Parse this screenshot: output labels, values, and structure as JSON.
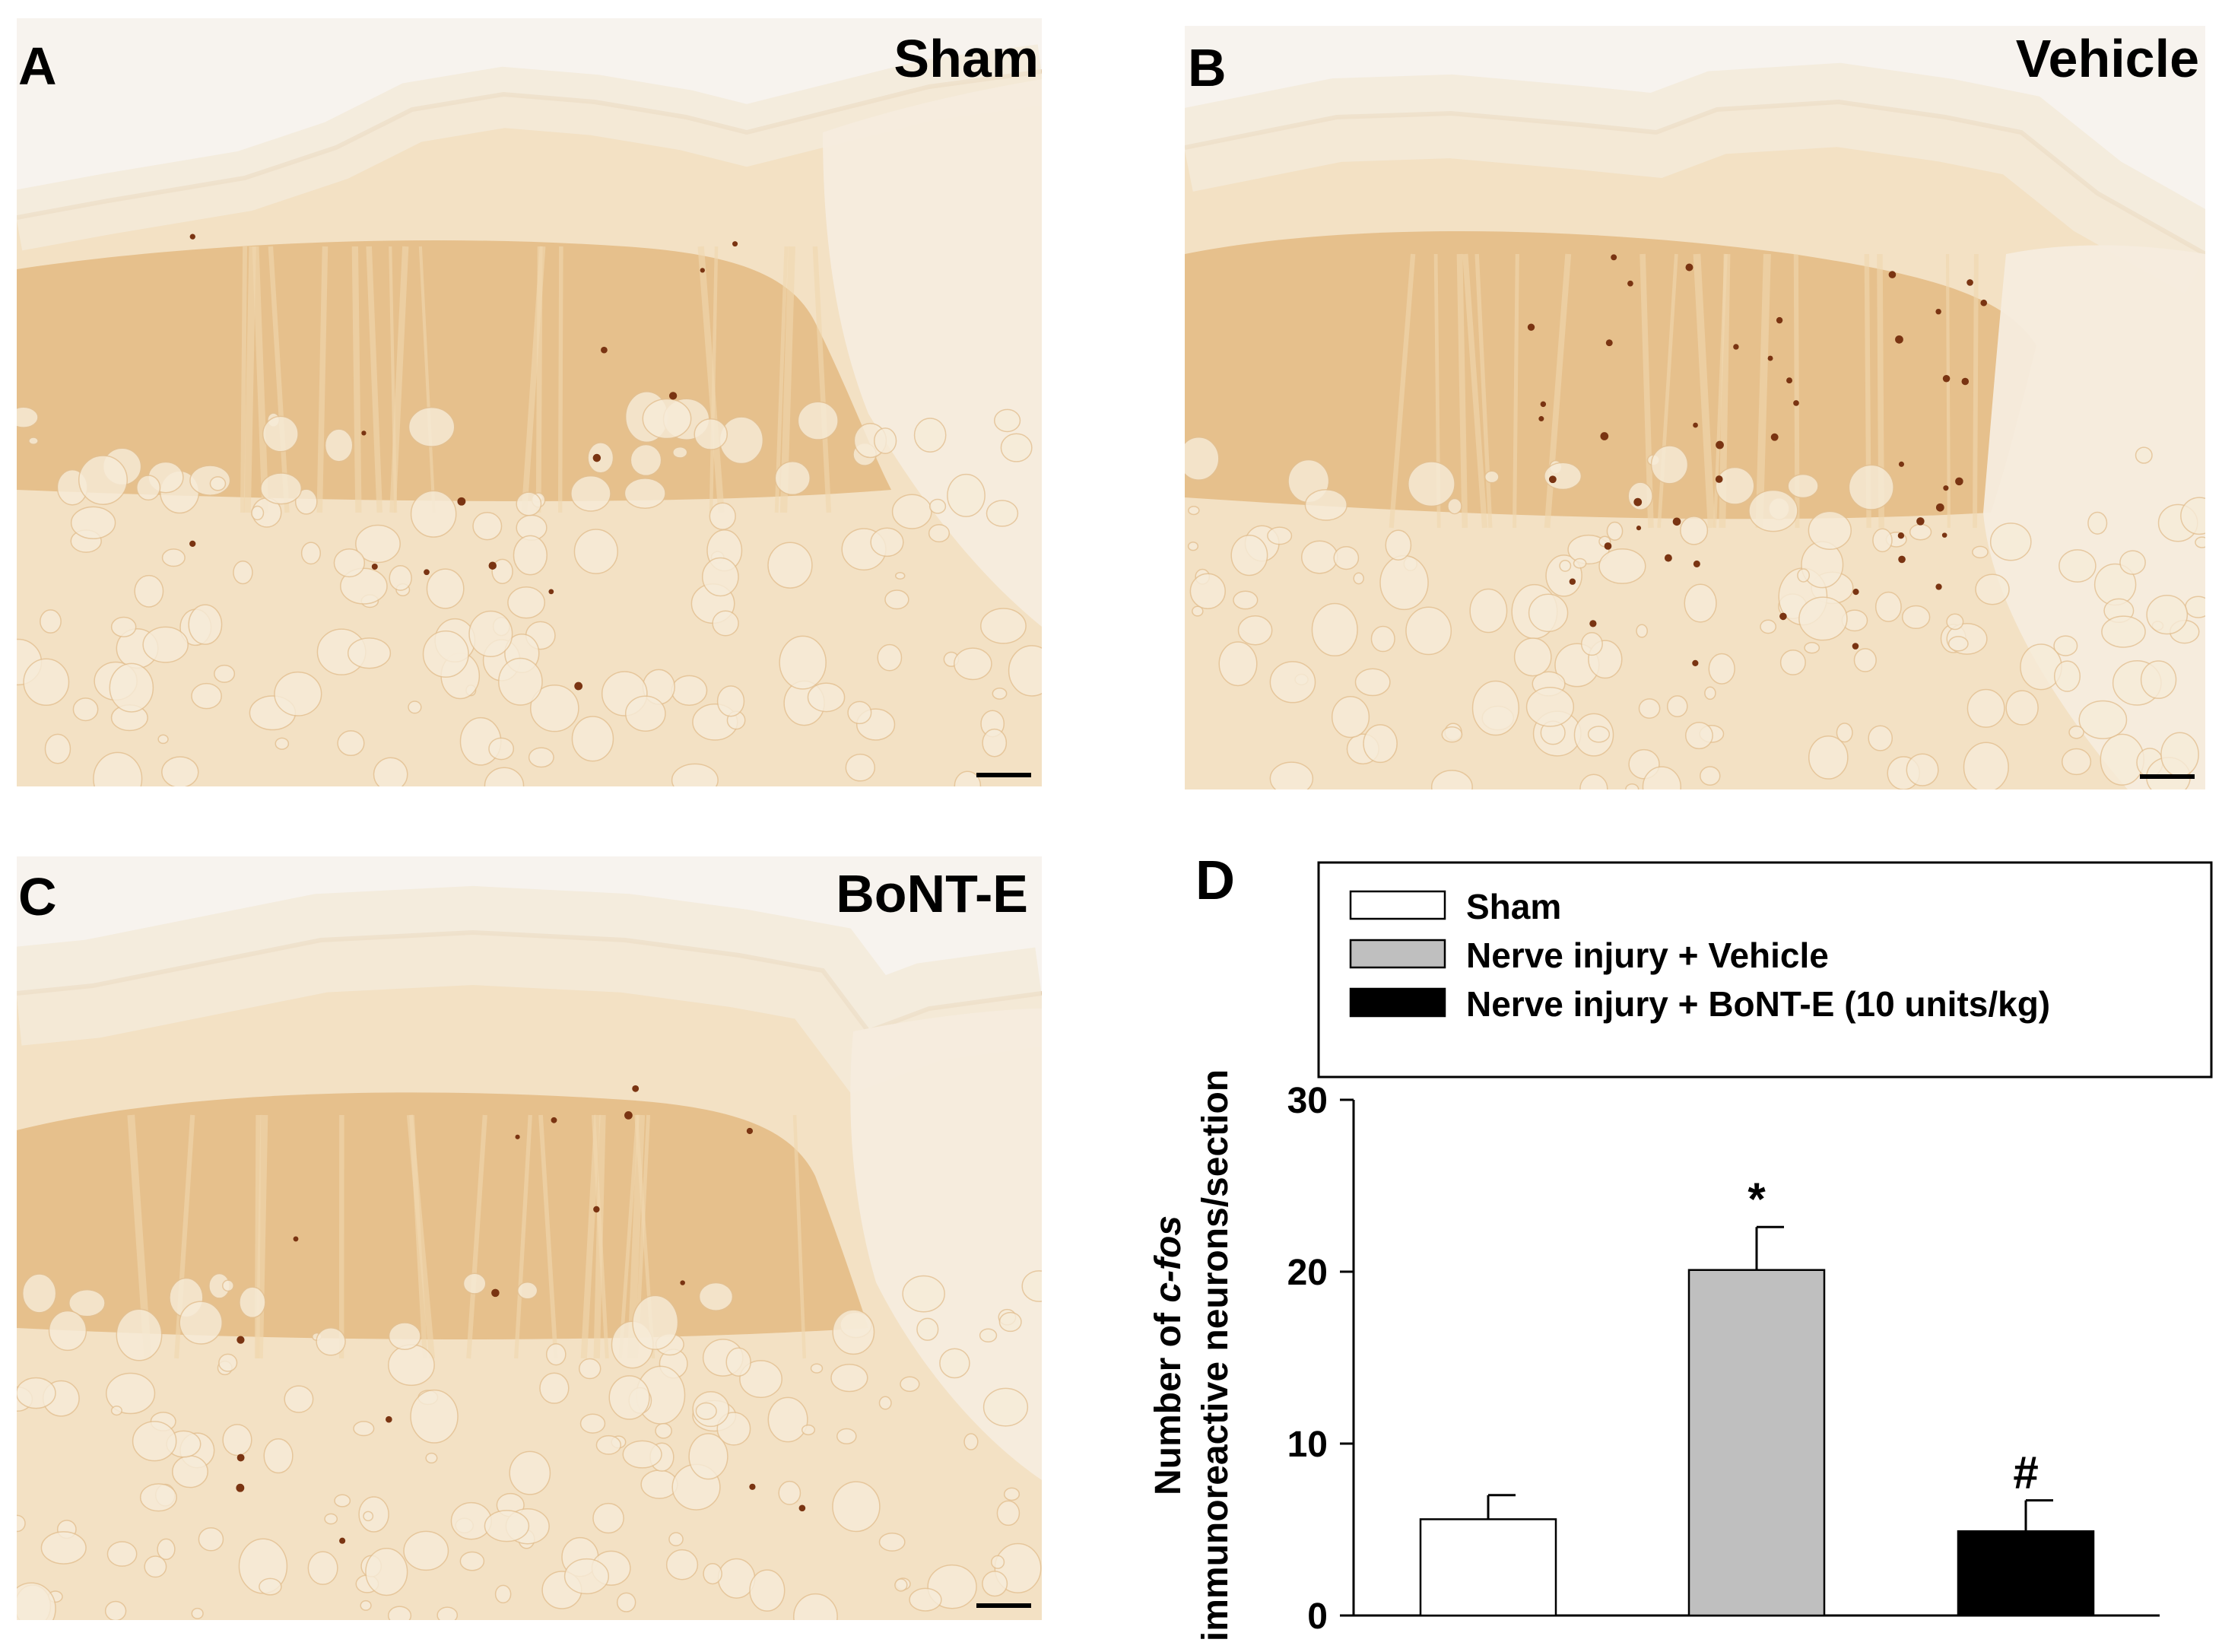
{
  "panels": [
    {
      "id": "A",
      "letter": "A",
      "title": "Sham"
    },
    {
      "id": "B",
      "letter": "B",
      "title": "Vehicle"
    },
    {
      "id": "C",
      "letter": "C",
      "title": "BoNT-E"
    }
  ],
  "panel_d_letter": "D",
  "chart_data": {
    "type": "bar",
    "categories": [
      "Sham",
      "Nerve injury + Vehicle",
      "Nerve injury + BoNT-E (10 units/kg)"
    ],
    "values": [
      5.6,
      20.1,
      4.9
    ],
    "errors": [
      1.4,
      2.5,
      1.8
    ],
    "annotations": [
      "",
      "*",
      "#"
    ],
    "colors": [
      "#ffffff",
      "#bfbfbf",
      "#000000"
    ],
    "ylabel_line1_prefix": "Number of ",
    "ylabel_line1_italic": "c-fos",
    "ylabel_line2": "immunoreactive neurons/section",
    "ylim": [
      0,
      30
    ],
    "yticks": [
      0,
      10,
      20,
      30
    ],
    "legend": [
      "Sham",
      "Nerve injury + Vehicle",
      "Nerve injury + BoNT-E (10 units/kg)"
    ],
    "legend_placement": "top",
    "grid": false
  }
}
